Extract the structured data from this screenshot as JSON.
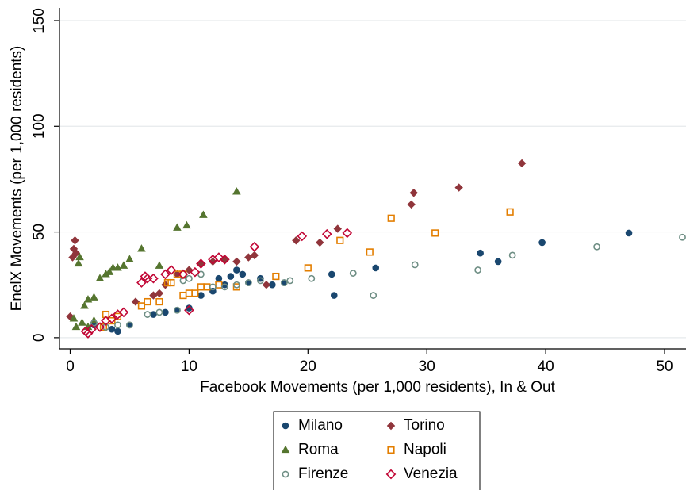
{
  "chart_data": {
    "type": "scatter",
    "xlabel": "Facebook Movements (per 1,000 residents), In & Out",
    "ylabel": "EnelX Movements (per 1,000 residents)",
    "xlim": [
      -0.9,
      51.8
    ],
    "ylim": [
      -5.3,
      156
    ],
    "xticks": [
      0,
      10,
      20,
      30,
      40,
      50
    ],
    "yticks": [
      0,
      50,
      100,
      150
    ],
    "grid": true,
    "legend": "bottom",
    "series": [
      {
        "name": "Milano",
        "color": "#1a476f",
        "marker": "circle",
        "x": [
          2,
          3.5,
          4,
          5,
          7,
          8,
          9,
          10,
          11,
          12,
          12.5,
          13,
          13.5,
          14,
          14.5,
          15,
          16,
          17,
          18,
          22,
          22.2,
          25.7,
          34.5,
          36,
          39.7,
          47
        ],
        "y": [
          6,
          4,
          3,
          6,
          11,
          12,
          13,
          14,
          20,
          22,
          28,
          25,
          29,
          32,
          30,
          26,
          28,
          25,
          26,
          30,
          20,
          33,
          40,
          36,
          45,
          49.5
        ]
      },
      {
        "name": "Torino",
        "color": "#90353b",
        "marker": "diamond",
        "x": [
          0,
          0.2,
          0.3,
          0.4,
          0.5,
          5.5,
          7,
          7.5,
          8,
          9,
          10,
          11,
          12,
          13,
          14,
          15,
          15.5,
          16.5,
          19,
          21,
          22.5,
          28.7,
          28.9,
          32.7,
          38
        ],
        "y": [
          10,
          38,
          42,
          46,
          40,
          17,
          20,
          21,
          25,
          30,
          32,
          35,
          36,
          37,
          36,
          38,
          39,
          25,
          46,
          45,
          51.5,
          63,
          68.5,
          71,
          82.5
        ]
      },
      {
        "name": "Roma",
        "color": "#55752f",
        "marker": "triangle",
        "x": [
          0.3,
          0.5,
          0.7,
          0.8,
          1,
          1.2,
          1.5,
          1.5,
          2,
          2,
          2.5,
          3,
          3.3,
          3.6,
          4,
          4.5,
          5,
          6,
          7.5,
          9,
          9.8,
          11.2,
          14
        ],
        "y": [
          9,
          5,
          35,
          38,
          7,
          15,
          18,
          5,
          19,
          8,
          28,
          30,
          31,
          33,
          33,
          34,
          37,
          42,
          34,
          52,
          53,
          58,
          69
        ]
      },
      {
        "name": "Napoli",
        "color": "#e37e00",
        "marker": "square-open",
        "x": [
          2.8,
          3,
          3.5,
          4,
          6,
          6.5,
          7.5,
          8.2,
          8.5,
          9,
          9.5,
          9.5,
          10,
          10.5,
          11,
          11.5,
          12.5,
          14,
          17.3,
          20,
          22.7,
          25.2,
          27,
          30.7,
          37
        ],
        "y": [
          5,
          11,
          8,
          10,
          15,
          17,
          17,
          26,
          26,
          30,
          20,
          30,
          21,
          21,
          24,
          24,
          25,
          24,
          29,
          33,
          46,
          40.5,
          56.5,
          49.5,
          59.5
        ]
      },
      {
        "name": "Firenze",
        "color": "#6e8e84",
        "marker": "circle-open",
        "x": [
          2,
          3,
          4,
          5,
          6.5,
          7.5,
          9,
          9.5,
          10,
          11,
          12,
          13,
          14,
          15,
          16,
          18,
          18.5,
          20.3,
          23.8,
          25.5,
          29,
          34.3,
          37.2,
          44.3,
          51.5
        ],
        "y": [
          7,
          5,
          6,
          6,
          11,
          12,
          13,
          27,
          28,
          30,
          24,
          24,
          25,
          26,
          27,
          26,
          27,
          28,
          30.5,
          20,
          34.5,
          32,
          39,
          43,
          47.5
        ]
      },
      {
        "name": "Venezia",
        "color": "#c10534",
        "marker": "diamond-open",
        "x": [
          1.3,
          1.5,
          1.8,
          2.5,
          3,
          3.5,
          4,
          4.5,
          6,
          6.3,
          6.5,
          7,
          8,
          8.5,
          9.5,
          10,
          10.5,
          11,
          12,
          12.5,
          13,
          15.5,
          19.5,
          21.6,
          23.3
        ],
        "y": [
          3,
          2,
          4,
          5,
          8,
          9,
          11,
          12,
          26,
          29,
          28,
          28,
          30,
          32,
          30,
          13,
          31,
          35,
          37,
          38,
          37,
          43,
          48,
          49,
          49.5
        ]
      }
    ]
  }
}
